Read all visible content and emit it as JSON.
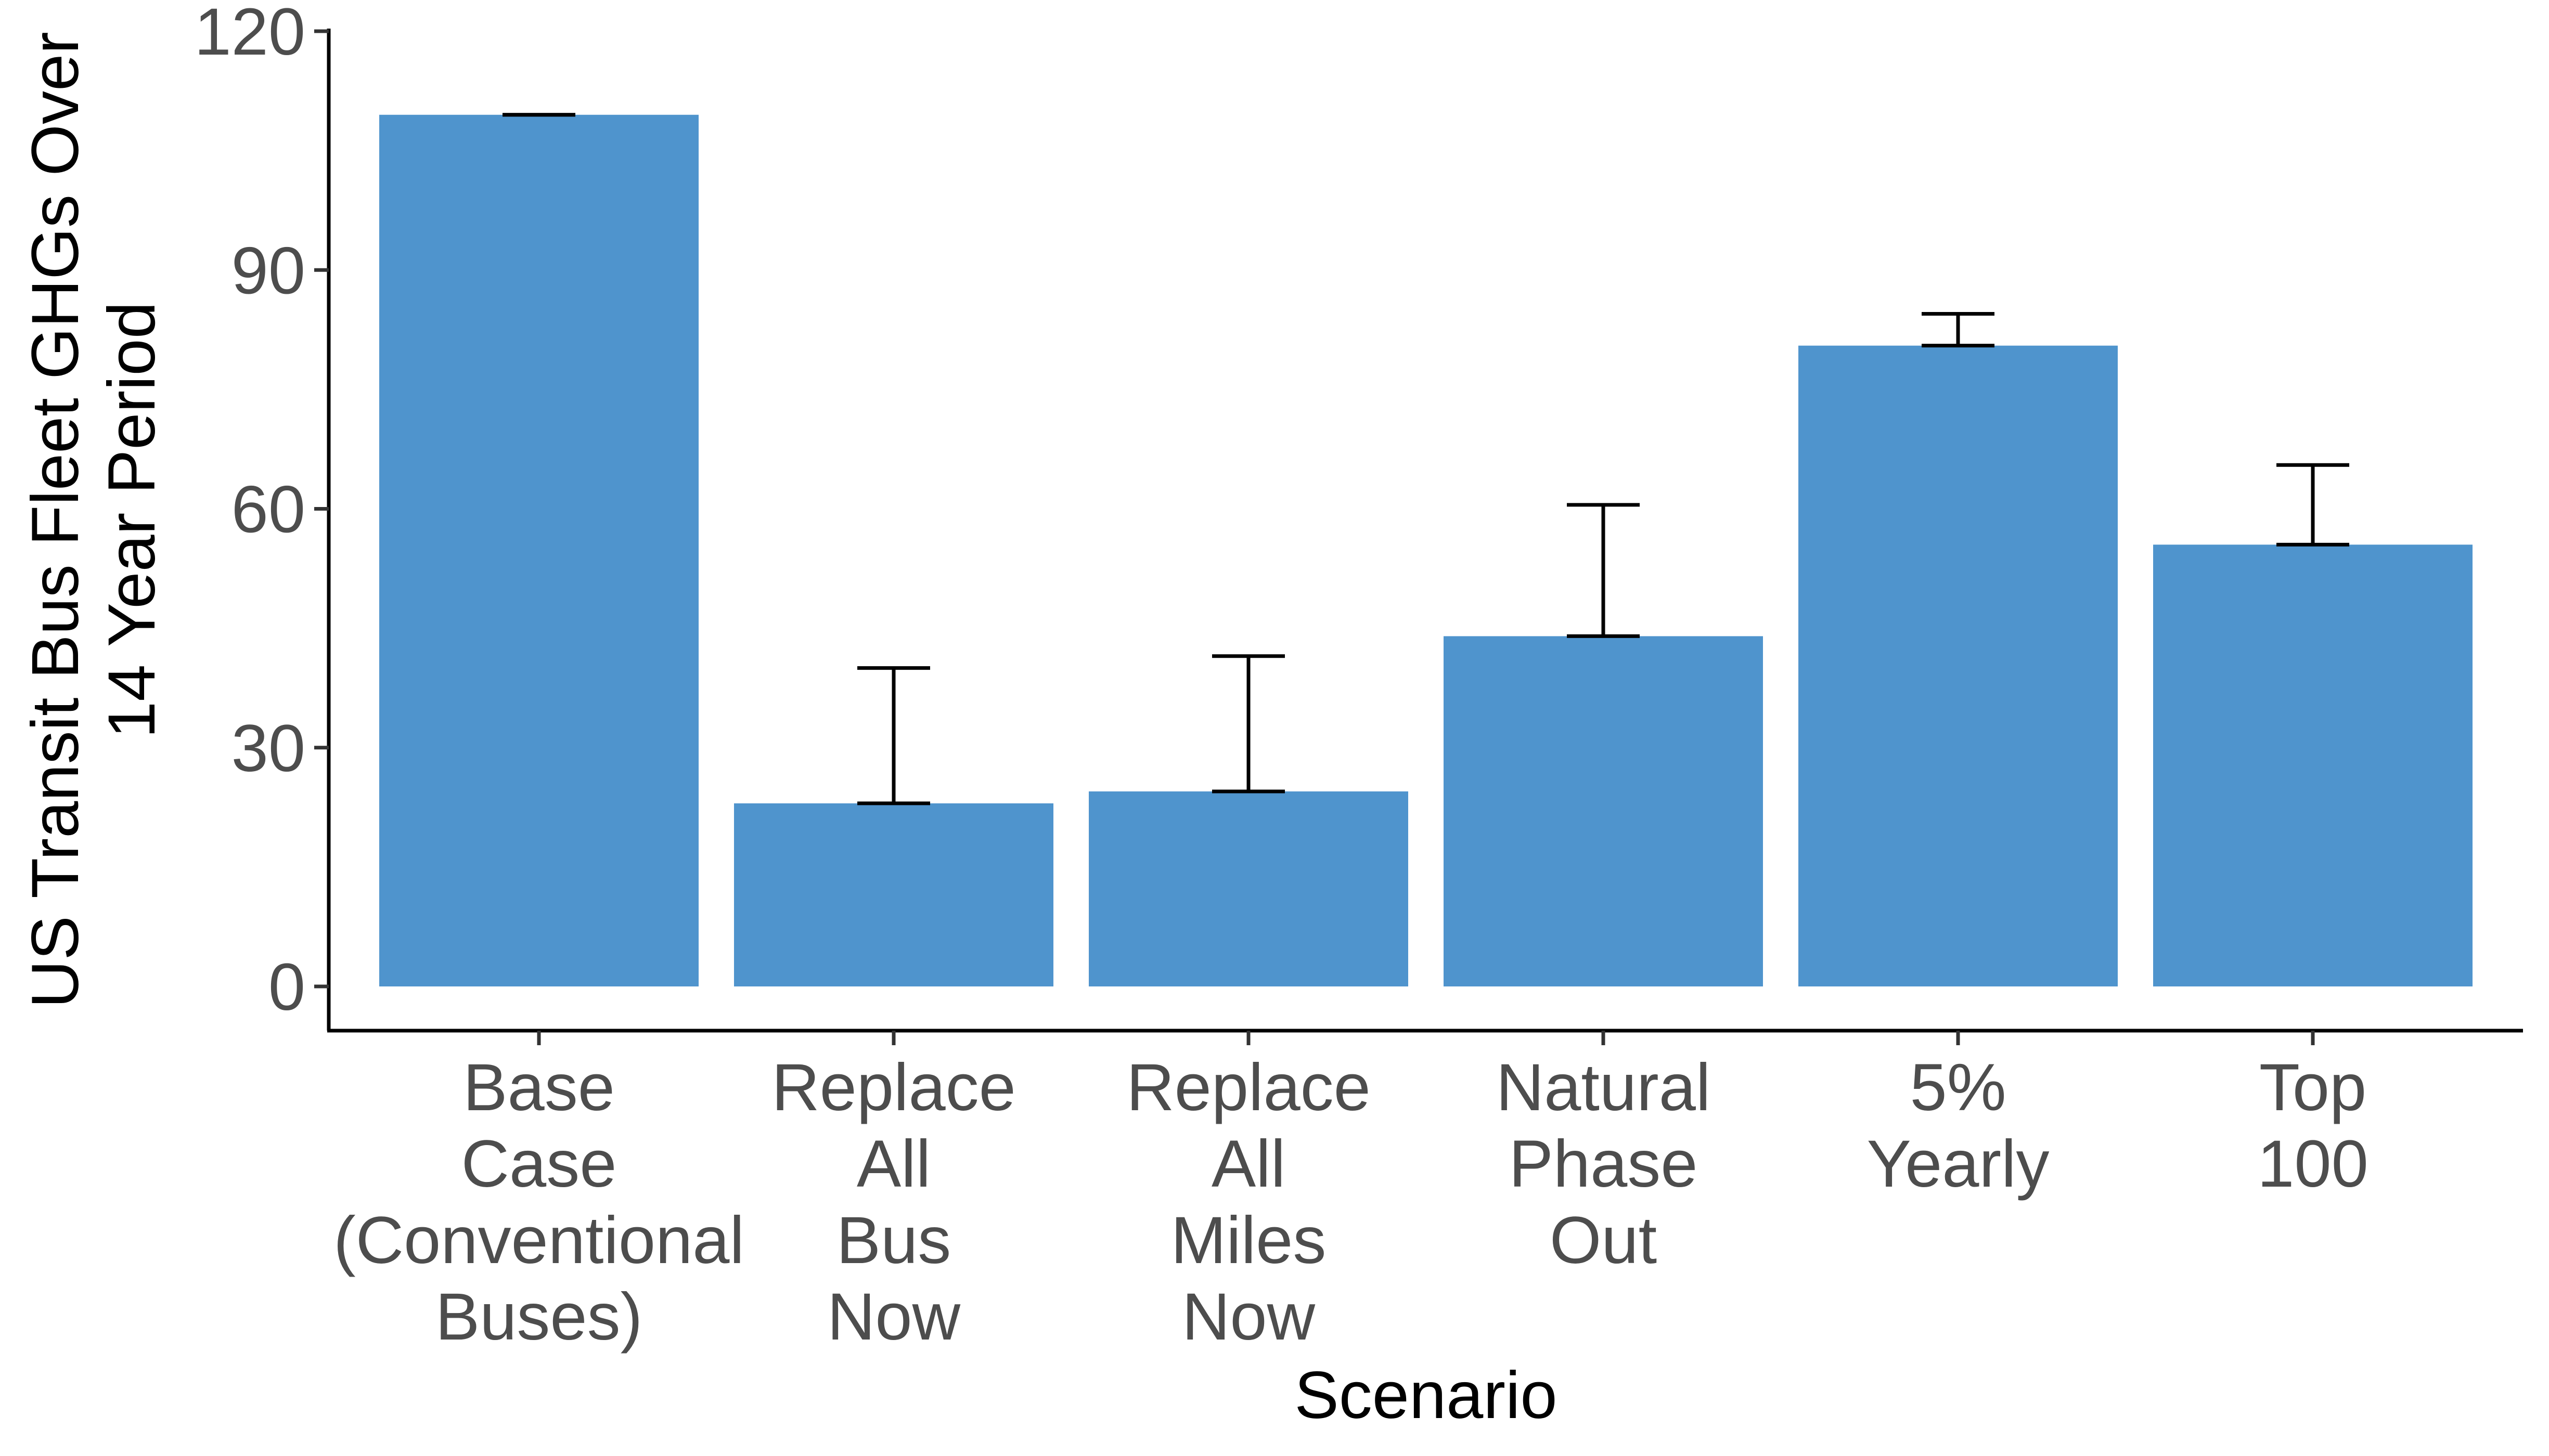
{
  "chart_data": {
    "type": "bar",
    "title": "",
    "xlabel": "Scenario",
    "ylabel_lines": [
      "US Transit Bus Fleet GHGs Over",
      "14 Year Period"
    ],
    "ylim": [
      0,
      120
    ],
    "yticks": [
      0,
      30,
      60,
      90,
      120
    ],
    "grid": false,
    "bar_color": "#4f94cd",
    "categories": [
      "Base Case (Conventional Buses)",
      "Replace All Bus Now",
      "Replace All Miles Now",
      "Natural Phase Out",
      "5% Yearly",
      "Top 100"
    ],
    "category_lines": [
      [
        "Base",
        "Case",
        "(Conventional",
        "Buses)"
      ],
      [
        "Replace",
        "All",
        "Bus",
        "Now"
      ],
      [
        "Replace",
        "All",
        "Miles",
        "Now"
      ],
      [
        "Natural",
        "Phase",
        "Out"
      ],
      [
        "5%",
        "Yearly"
      ],
      [
        "Top",
        "100"
      ]
    ],
    "values": [
      109.5,
      23,
      24.5,
      44,
      80.5,
      55.5
    ],
    "error_upper": [
      109.5,
      40,
      41.5,
      60.5,
      84.5,
      65.5
    ]
  }
}
